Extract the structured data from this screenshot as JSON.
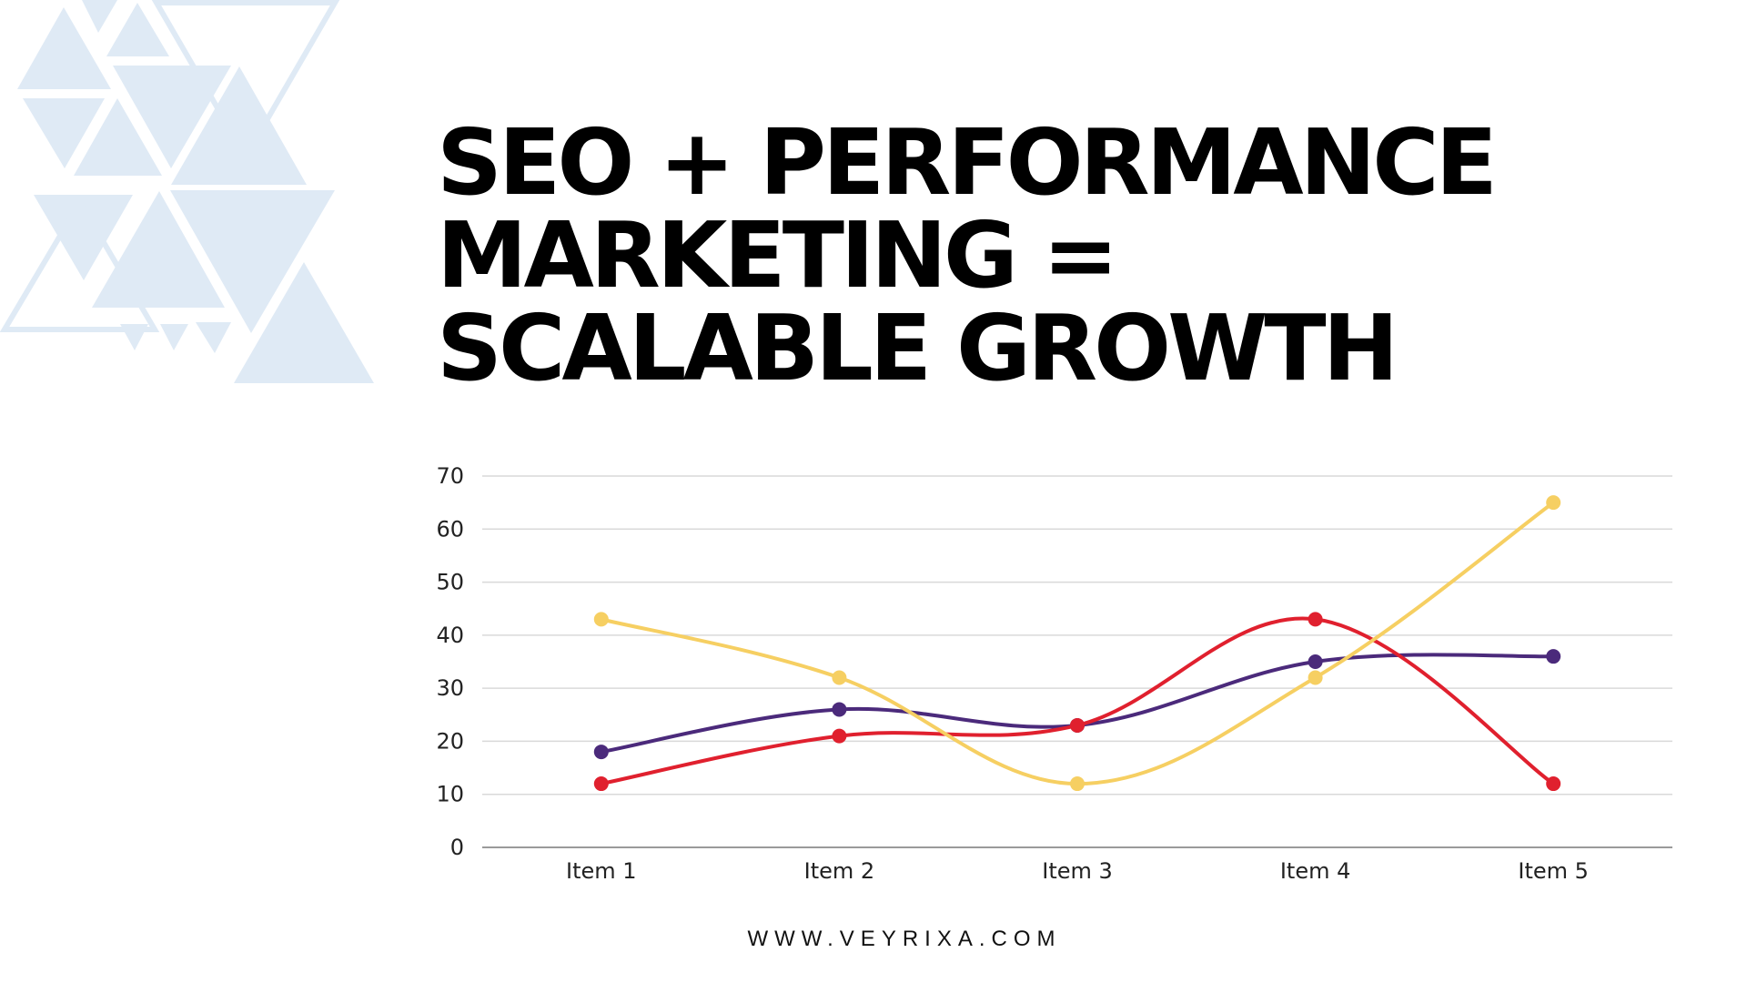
{
  "title_lines": [
    "SEO + PERFORMANCE",
    "MARKETING =",
    "SCALABLE GROWTH"
  ],
  "footer": "WWW.VEYRIXA.COM",
  "decoration_color": "#dfeaf5",
  "chart_data": {
    "type": "line",
    "smooth": true,
    "categories": [
      "Item 1",
      "Item 2",
      "Item 3",
      "Item 4",
      "Item 5"
    ],
    "ylim": [
      0,
      70
    ],
    "yticks": [
      0,
      10,
      20,
      30,
      40,
      50,
      60,
      70
    ],
    "grid": true,
    "legend": "none",
    "series": [
      {
        "color": "#4b2a7b",
        "values": [
          18,
          26,
          23,
          35,
          36
        ]
      },
      {
        "color": "#e0202e",
        "values": [
          12,
          21,
          23,
          43,
          12
        ]
      },
      {
        "color": "#f6cf62",
        "values": [
          43,
          32,
          12,
          32,
          65
        ]
      }
    ]
  }
}
